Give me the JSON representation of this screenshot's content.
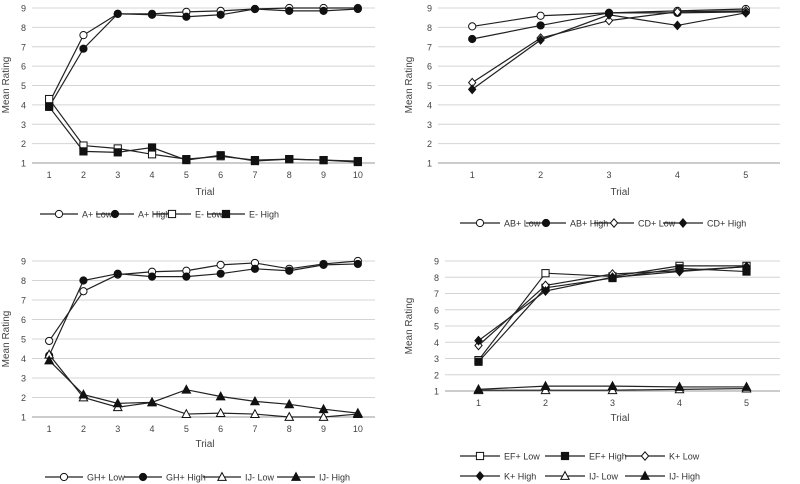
{
  "chart_data": [
    {
      "type": "line",
      "title": "",
      "xlabel": "Trial",
      "ylabel": "Mean Rating",
      "categories": [
        "1",
        "2",
        "3",
        "4",
        "5",
        "6",
        "7",
        "8",
        "9",
        "10"
      ],
      "ylim": [
        1,
        9
      ],
      "yticks": [
        "1",
        "2",
        "3",
        "4",
        "5",
        "6",
        "7",
        "8",
        "9"
      ],
      "legend_position": "bottom",
      "series": [
        {
          "name": "A+ Low",
          "marker": "circle-open",
          "values": [
            4.1,
            7.6,
            8.7,
            8.7,
            8.8,
            8.85,
            8.95,
            9.0,
            9.0,
            9.0
          ]
        },
        {
          "name": "A+ High",
          "marker": "circle-filled",
          "values": [
            3.9,
            6.9,
            8.7,
            8.65,
            8.55,
            8.65,
            8.95,
            8.85,
            8.85,
            8.95
          ]
        },
        {
          "name": "E- Low",
          "marker": "square-open",
          "values": [
            4.3,
            1.9,
            1.75,
            1.45,
            1.2,
            1.35,
            1.15,
            1.2,
            1.15,
            1.1
          ]
        },
        {
          "name": "E- High",
          "marker": "square-filled",
          "values": [
            3.9,
            1.6,
            1.55,
            1.8,
            1.15,
            1.4,
            1.1,
            1.2,
            1.15,
            1.05
          ]
        }
      ]
    },
    {
      "type": "line",
      "title": "",
      "xlabel": "Trial",
      "ylabel": "Mean Rating",
      "categories": [
        "1",
        "2",
        "3",
        "4",
        "5"
      ],
      "ylim": [
        1,
        9
      ],
      "yticks": [
        "1",
        "2",
        "3",
        "4",
        "5",
        "6",
        "7",
        "8",
        "9"
      ],
      "legend_position": "bottom",
      "series": [
        {
          "name": "AB+ Low",
          "marker": "circle-open",
          "values": [
            8.05,
            8.6,
            8.75,
            8.85,
            8.95
          ]
        },
        {
          "name": "AB+ High",
          "marker": "circle-filled",
          "values": [
            7.4,
            8.1,
            8.75,
            8.75,
            8.8
          ]
        },
        {
          "name": "CD+ Low",
          "marker": "diamond-open",
          "values": [
            5.15,
            7.45,
            8.35,
            8.8,
            8.85
          ]
        },
        {
          "name": "CD+ High",
          "marker": "diamond-filled",
          "values": [
            4.8,
            7.35,
            8.65,
            8.1,
            8.75
          ]
        }
      ]
    },
    {
      "type": "line",
      "title": "",
      "xlabel": "Trial",
      "ylabel": "Mean Rating",
      "categories": [
        "1",
        "2",
        "3",
        "4",
        "5",
        "6",
        "7",
        "8",
        "9",
        "10"
      ],
      "ylim": [
        1,
        9
      ],
      "yticks": [
        "1",
        "2",
        "3",
        "4",
        "5",
        "6",
        "7",
        "8",
        "9"
      ],
      "legend_position": "bottom",
      "series": [
        {
          "name": "GH+ Low",
          "marker": "circle-open",
          "values": [
            4.9,
            7.45,
            8.3,
            8.45,
            8.5,
            8.8,
            8.9,
            8.6,
            8.85,
            9.0
          ]
        },
        {
          "name": "GH+ High",
          "marker": "circle-filled",
          "values": [
            4.15,
            8.0,
            8.35,
            8.2,
            8.2,
            8.35,
            8.6,
            8.5,
            8.8,
            8.85
          ]
        },
        {
          "name": "IJ- Low",
          "marker": "triangle-open",
          "values": [
            4.2,
            2.0,
            1.5,
            1.75,
            1.15,
            1.2,
            1.15,
            1.0,
            1.0,
            1.15
          ]
        },
        {
          "name": "IJ- High",
          "marker": "triangle-filled",
          "values": [
            3.9,
            2.15,
            1.7,
            1.75,
            2.4,
            2.05,
            1.8,
            1.65,
            1.4,
            1.2
          ]
        }
      ]
    },
    {
      "type": "line",
      "title": "",
      "xlabel": "Trial",
      "ylabel": "Mean Rating",
      "categories": [
        "1",
        "2",
        "3",
        "4",
        "5"
      ],
      "ylim": [
        1,
        9
      ],
      "yticks": [
        "1",
        "2",
        "3",
        "4",
        "5",
        "6",
        "7",
        "8",
        "9"
      ],
      "legend_position": "bottom",
      "series": [
        {
          "name": "EF+ Low",
          "marker": "square-open",
          "values": [
            2.9,
            8.25,
            8.05,
            8.7,
            8.7
          ]
        },
        {
          "name": "EF+ High",
          "marker": "square-filled",
          "values": [
            2.8,
            7.35,
            7.95,
            8.55,
            8.35
          ]
        },
        {
          "name": "K+ Low",
          "marker": "diamond-open",
          "values": [
            3.8,
            7.5,
            8.2,
            8.4,
            8.65
          ]
        },
        {
          "name": "K+ High",
          "marker": "diamond-filled",
          "values": [
            4.1,
            7.15,
            8.0,
            8.35,
            8.65
          ]
        },
        {
          "name": "IJ- Low",
          "marker": "triangle-open",
          "values": [
            1.05,
            1.05,
            1.05,
            1.1,
            1.15
          ]
        },
        {
          "name": "IJ- High",
          "marker": "triangle-filled",
          "values": [
            1.1,
            1.3,
            1.3,
            1.25,
            1.25
          ]
        }
      ]
    }
  ]
}
